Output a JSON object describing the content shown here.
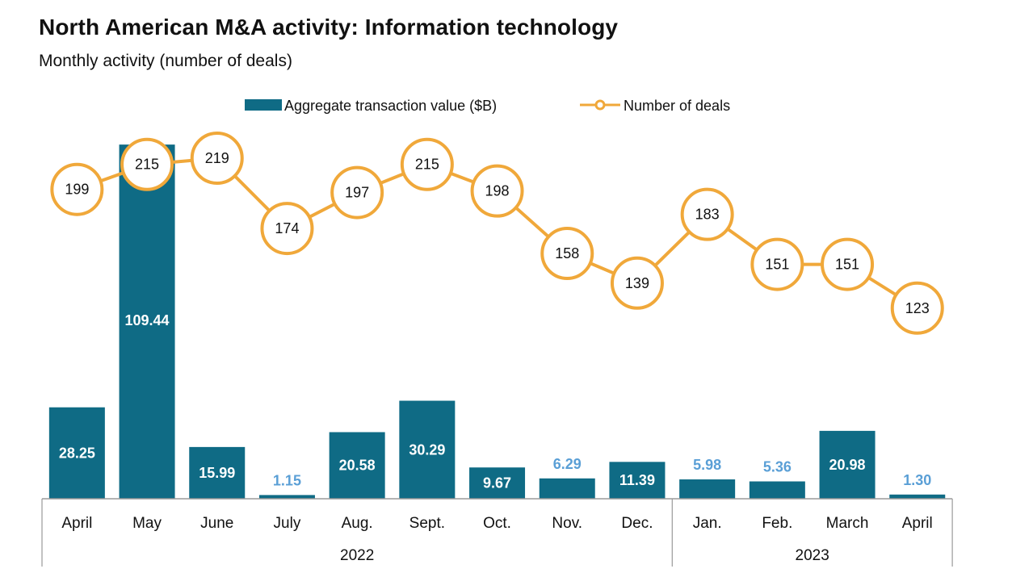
{
  "header": {
    "title": "North American M&A activity: Information technology",
    "subtitle": "Monthly activity (number of deals)"
  },
  "chart_data": {
    "type": "bar",
    "categories": [
      "April",
      "May",
      "June",
      "July",
      "Aug.",
      "Sept.",
      "Oct.",
      "Nov.",
      "Dec.",
      "Jan.",
      "Feb.",
      "March",
      "April"
    ],
    "year_groups": [
      {
        "label": "2022",
        "start": 0,
        "end": 8
      },
      {
        "label": "2023",
        "start": 9,
        "end": 12
      }
    ],
    "series": [
      {
        "name": "Aggregate transaction value ($B)",
        "type": "bar",
        "color": "#0f6b85",
        "values": [
          28.25,
          109.44,
          15.99,
          1.15,
          20.58,
          30.29,
          9.67,
          6.29,
          11.39,
          5.98,
          5.36,
          20.98,
          1.3
        ],
        "labels": [
          "28.25",
          "109.44",
          "15.99",
          "1.15",
          "20.58",
          "30.29",
          "9.67",
          "6.29",
          "11.39",
          "5.98",
          "5.36",
          "20.98",
          "1.30"
        ]
      },
      {
        "name": "Number of deals",
        "type": "line",
        "color": "#f0a83a",
        "values": [
          199,
          215,
          219,
          174,
          197,
          215,
          198,
          158,
          139,
          183,
          151,
          151,
          123
        ],
        "labels": [
          "199",
          "215",
          "219",
          "174",
          "197",
          "215",
          "198",
          "158",
          "139",
          "183",
          "151",
          "151",
          "123"
        ]
      }
    ],
    "legend_position": "top-center",
    "grid": false,
    "small_label_color": "#5a9fd6"
  }
}
